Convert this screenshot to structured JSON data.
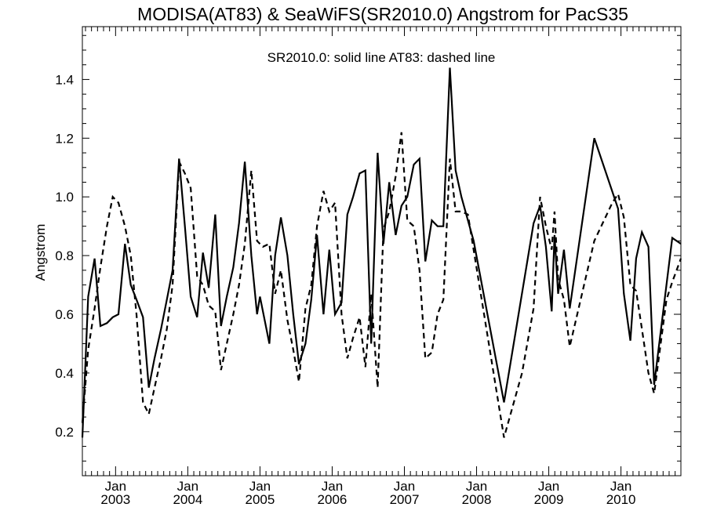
{
  "chart_data": {
    "type": "line",
    "title": "MODISA(AT83) & SeaWiFS(SR2010.0)  Angstrom for PacS35",
    "annotation": "SR2010.0: solid line   AT83: dashed line",
    "ylabel": "Angstrom",
    "xlabel": "",
    "ylim": [
      0.05,
      1.58
    ],
    "xlim": [
      2002.54,
      2010.83
    ],
    "y_ticks": [
      "0.2",
      "0.4",
      "0.6",
      "0.8",
      "1.0",
      "1.2",
      "1.4"
    ],
    "x_ticks": [
      {
        "month": "Jan",
        "year": "2003"
      },
      {
        "month": "Jan",
        "year": "2004"
      },
      {
        "month": "Jan",
        "year": "2005"
      },
      {
        "month": "Jan",
        "year": "2006"
      },
      {
        "month": "Jan",
        "year": "2007"
      },
      {
        "month": "Jan",
        "year": "2008"
      },
      {
        "month": "Jan",
        "year": "2009"
      },
      {
        "month": "Jan",
        "year": "2010"
      }
    ],
    "grid": false,
    "series": [
      {
        "name": "SR2010.0",
        "style": "solid",
        "color": "#000000",
        "points": [
          [
            2002.54,
            0.18
          ],
          [
            2002.62,
            0.66
          ],
          [
            2002.71,
            0.79
          ],
          [
            2002.79,
            0.56
          ],
          [
            2002.88,
            0.57
          ],
          [
            2002.96,
            0.59
          ],
          [
            2003.04,
            0.6
          ],
          [
            2003.13,
            0.84
          ],
          [
            2003.21,
            0.7
          ],
          [
            2003.29,
            0.65
          ],
          [
            2003.38,
            0.59
          ],
          [
            2003.46,
            0.35
          ],
          [
            2003.54,
            0.45
          ],
          [
            2003.63,
            0.55
          ],
          [
            2003.71,
            0.65
          ],
          [
            2003.79,
            0.75
          ],
          [
            2003.88,
            1.13
          ],
          [
            2003.96,
            0.9
          ],
          [
            2004.04,
            0.66
          ],
          [
            2004.13,
            0.59
          ],
          [
            2004.21,
            0.81
          ],
          [
            2004.29,
            0.69
          ],
          [
            2004.38,
            0.94
          ],
          [
            2004.46,
            0.56
          ],
          [
            2004.54,
            0.66
          ],
          [
            2004.63,
            0.76
          ],
          [
            2004.71,
            0.91
          ],
          [
            2004.79,
            1.12
          ],
          [
            2004.88,
            0.8
          ],
          [
            2004.96,
            0.6
          ],
          [
            2005.0,
            0.66
          ],
          [
            2005.13,
            0.5
          ],
          [
            2005.21,
            0.8
          ],
          [
            2005.29,
            0.93
          ],
          [
            2005.38,
            0.8
          ],
          [
            2005.46,
            0.6
          ],
          [
            2005.54,
            0.43
          ],
          [
            2005.63,
            0.5
          ],
          [
            2005.71,
            0.65
          ],
          [
            2005.79,
            0.87
          ],
          [
            2005.88,
            0.6
          ],
          [
            2005.96,
            0.82
          ],
          [
            2006.04,
            0.6
          ],
          [
            2006.13,
            0.64
          ],
          [
            2006.21,
            0.94
          ],
          [
            2006.29,
            1.0
          ],
          [
            2006.38,
            1.08
          ],
          [
            2006.46,
            1.09
          ],
          [
            2006.54,
            0.5
          ],
          [
            2006.63,
            1.15
          ],
          [
            2006.71,
            0.84
          ],
          [
            2006.79,
            1.05
          ],
          [
            2006.88,
            0.87
          ],
          [
            2006.96,
            0.97
          ],
          [
            2007.04,
            1.0
          ],
          [
            2007.13,
            1.11
          ],
          [
            2007.21,
            1.13
          ],
          [
            2007.29,
            0.78
          ],
          [
            2007.38,
            0.92
          ],
          [
            2007.46,
            0.9
          ],
          [
            2007.54,
            0.9
          ],
          [
            2007.63,
            1.44
          ],
          [
            2007.71,
            1.09
          ],
          [
            2007.79,
            1.0
          ],
          [
            2007.88,
            0.92
          ],
          [
            2007.96,
            0.85
          ],
          [
            2008.38,
            0.3
          ],
          [
            2008.79,
            0.91
          ],
          [
            2008.88,
            0.97
          ],
          [
            2008.96,
            0.83
          ],
          [
            2009.04,
            0.61
          ],
          [
            2009.08,
            0.87
          ],
          [
            2009.13,
            0.67
          ],
          [
            2009.21,
            0.82
          ],
          [
            2009.29,
            0.62
          ],
          [
            2009.63,
            1.2
          ],
          [
            2009.96,
            0.96
          ],
          [
            2010.04,
            0.67
          ],
          [
            2010.13,
            0.51
          ],
          [
            2010.21,
            0.79
          ],
          [
            2010.29,
            0.88
          ],
          [
            2010.38,
            0.83
          ],
          [
            2010.46,
            0.36
          ],
          [
            2010.71,
            0.86
          ],
          [
            2010.83,
            0.84
          ]
        ]
      },
      {
        "name": "AT83",
        "style": "dashed",
        "color": "#000000",
        "points": [
          [
            2002.54,
            0.23
          ],
          [
            2002.62,
            0.48
          ],
          [
            2002.71,
            0.62
          ],
          [
            2002.79,
            0.76
          ],
          [
            2002.88,
            0.9
          ],
          [
            2002.96,
            1.0
          ],
          [
            2003.04,
            0.98
          ],
          [
            2003.13,
            0.9
          ],
          [
            2003.21,
            0.8
          ],
          [
            2003.29,
            0.6
          ],
          [
            2003.38,
            0.3
          ],
          [
            2003.46,
            0.26
          ],
          [
            2003.54,
            0.35
          ],
          [
            2003.63,
            0.45
          ],
          [
            2003.71,
            0.55
          ],
          [
            2003.79,
            0.7
          ],
          [
            2003.88,
            1.12
          ],
          [
            2003.96,
            1.08
          ],
          [
            2004.04,
            1.03
          ],
          [
            2004.13,
            0.73
          ],
          [
            2004.21,
            0.7
          ],
          [
            2004.29,
            0.63
          ],
          [
            2004.38,
            0.61
          ],
          [
            2004.46,
            0.41
          ],
          [
            2004.54,
            0.5
          ],
          [
            2004.63,
            0.6
          ],
          [
            2004.71,
            0.7
          ],
          [
            2004.79,
            0.84
          ],
          [
            2004.88,
            1.09
          ],
          [
            2004.96,
            0.85
          ],
          [
            2005.04,
            0.83
          ],
          [
            2005.13,
            0.84
          ],
          [
            2005.21,
            0.67
          ],
          [
            2005.29,
            0.75
          ],
          [
            2005.38,
            0.58
          ],
          [
            2005.46,
            0.48
          ],
          [
            2005.54,
            0.37
          ],
          [
            2005.63,
            0.62
          ],
          [
            2005.71,
            0.7
          ],
          [
            2005.79,
            0.9
          ],
          [
            2005.88,
            1.02
          ],
          [
            2005.96,
            0.95
          ],
          [
            2006.04,
            0.98
          ],
          [
            2006.13,
            0.6
          ],
          [
            2006.21,
            0.45
          ],
          [
            2006.29,
            0.52
          ],
          [
            2006.38,
            0.59
          ],
          [
            2006.46,
            0.42
          ],
          [
            2006.54,
            0.67
          ],
          [
            2006.63,
            0.35
          ],
          [
            2006.71,
            0.89
          ],
          [
            2006.79,
            0.95
          ],
          [
            2006.88,
            1.07
          ],
          [
            2006.96,
            1.22
          ],
          [
            2007.04,
            0.92
          ],
          [
            2007.13,
            0.9
          ],
          [
            2007.21,
            0.75
          ],
          [
            2007.29,
            0.45
          ],
          [
            2007.38,
            0.47
          ],
          [
            2007.46,
            0.6
          ],
          [
            2007.54,
            0.65
          ],
          [
            2007.63,
            1.13
          ],
          [
            2007.71,
            0.95
          ],
          [
            2007.79,
            0.95
          ],
          [
            2007.88,
            0.94
          ],
          [
            2008.38,
            0.18
          ],
          [
            2008.63,
            0.4
          ],
          [
            2008.79,
            0.62
          ],
          [
            2008.88,
            1.0
          ],
          [
            2008.96,
            0.9
          ],
          [
            2009.04,
            0.82
          ],
          [
            2009.08,
            0.95
          ],
          [
            2009.13,
            0.72
          ],
          [
            2009.21,
            0.65
          ],
          [
            2009.29,
            0.49
          ],
          [
            2009.63,
            0.85
          ],
          [
            2009.88,
            0.98
          ],
          [
            2009.96,
            1.01
          ],
          [
            2010.04,
            0.93
          ],
          [
            2010.13,
            0.7
          ],
          [
            2010.21,
            0.68
          ],
          [
            2010.29,
            0.55
          ],
          [
            2010.38,
            0.4
          ],
          [
            2010.46,
            0.33
          ],
          [
            2010.63,
            0.65
          ],
          [
            2010.71,
            0.71
          ],
          [
            2010.83,
            0.79
          ]
        ]
      }
    ]
  }
}
